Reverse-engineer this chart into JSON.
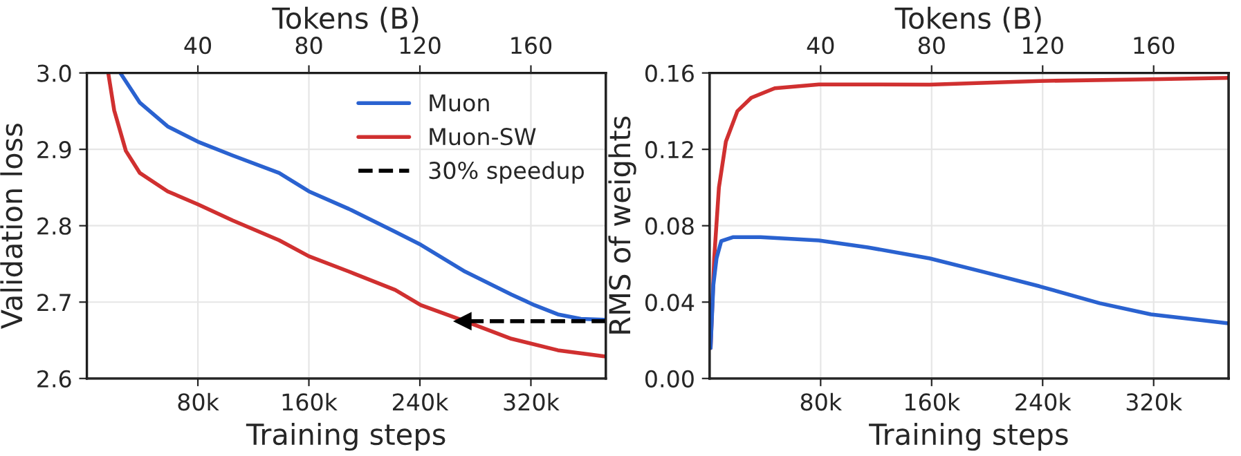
{
  "chart_data": [
    {
      "type": "line",
      "xlabel": "Training steps",
      "ylabel": "Validation loss",
      "x2label": "Tokens (B)",
      "xlim": [
        0,
        374000
      ],
      "xticks": [
        {
          "value": 80000,
          "label": "80k"
        },
        {
          "value": 160000,
          "label": "160k"
        },
        {
          "value": 240000,
          "label": "240k"
        },
        {
          "value": 320000,
          "label": "320k"
        }
      ],
      "x2lim": [
        0,
        187
      ],
      "x2ticks": [
        40,
        80,
        120,
        160
      ],
      "ylim": [
        2.6,
        3.0
      ],
      "yticks": [
        2.6,
        2.7,
        2.8,
        2.9,
        {
          "value": 3.0,
          "label": "3.0"
        }
      ],
      "grid": true,
      "legend": "top right",
      "series": [
        {
          "name": "Muon",
          "color": "#2a62d0",
          "x": [
            24100,
            38200,
            58200,
            80000,
            105000,
            138600,
            160000,
            188800,
            222200,
            240700,
            272500,
            305900,
            322600,
            339400,
            356000,
            372800
          ],
          "values": [
            3.0,
            2.961,
            2.93,
            2.91,
            2.892,
            2.869,
            2.845,
            2.822,
            2.792,
            2.775,
            2.74,
            2.71,
            2.696,
            2.684,
            2.678,
            2.677
          ]
        },
        {
          "name": "Muon-SW",
          "color": "#d03030",
          "x": [
            15400,
            19700,
            28100,
            38200,
            58200,
            80000,
            105000,
            138600,
            160000,
            188800,
            222200,
            240700,
            272500,
            305900,
            339400,
            372800
          ],
          "values": [
            3.0,
            2.951,
            2.898,
            2.869,
            2.845,
            2.828,
            2.807,
            2.781,
            2.76,
            2.74,
            2.716,
            2.696,
            2.675,
            2.652,
            2.637,
            2.629
          ]
        },
        {
          "name": "30% speedup",
          "color": "#000000",
          "line_style": "dashed",
          "x": [
            374000,
            271000
          ],
          "values": [
            2.675,
            2.675
          ]
        }
      ]
    },
    {
      "type": "line",
      "xlabel": "Training steps",
      "ylabel": "RMS of weights",
      "x2label": "Tokens (B)",
      "xlim": [
        0,
        374000
      ],
      "xticks": [
        {
          "value": 80000,
          "label": "80k"
        },
        {
          "value": 160000,
          "label": "160k"
        },
        {
          "value": 240000,
          "label": "240k"
        },
        {
          "value": 320000,
          "label": "320k"
        }
      ],
      "x2lim": [
        0,
        187
      ],
      "x2ticks": [
        40,
        80,
        120,
        160
      ],
      "ylim": [
        0,
        0.16
      ],
      "yticks": [
        {
          "value": 0,
          "label": "0.00"
        },
        {
          "value": 0.04,
          "label": "0.04"
        },
        {
          "value": 0.08,
          "label": "0.08"
        },
        {
          "value": 0.12,
          "label": "0.12"
        },
        {
          "value": 0.16,
          "label": "0.16"
        }
      ],
      "grid": true,
      "series": [
        {
          "color": "#d03030",
          "x": [
            700,
            3300,
            6700,
            11700,
            20000,
            30000,
            46900,
            78700,
            158600,
            237600,
            318000,
            373900
          ],
          "values": [
            0.016,
            0.063,
            0.1,
            0.124,
            0.14,
            0.147,
            0.152,
            0.154,
            0.1539,
            0.1558,
            0.1567,
            0.1574
          ]
        },
        {
          "color": "#2a62d0",
          "x": [
            700,
            2700,
            5000,
            8400,
            16700,
            36800,
            78700,
            113800,
            158600,
            197500,
            237600,
            281100,
            318000,
            373900
          ],
          "values": [
            0.016,
            0.049,
            0.063,
            0.072,
            0.074,
            0.074,
            0.0723,
            0.0687,
            0.0629,
            0.0558,
            0.0483,
            0.0394,
            0.0336,
            0.0289
          ]
        }
      ]
    }
  ]
}
